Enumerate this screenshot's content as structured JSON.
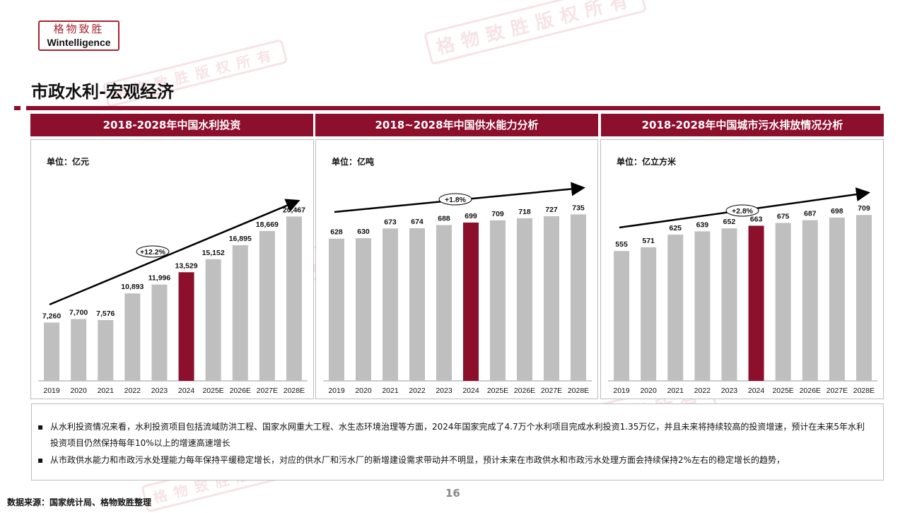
{
  "logo": {
    "cn": "格物致胜",
    "en": "Wintelligence"
  },
  "page_title": "市政水利-宏观经济",
  "panels": [
    {
      "header": "2018-2028年中国水利投资",
      "unit": "单位：亿元"
    },
    {
      "header": "2018~2028年中国供水能力分析",
      "unit": "单位：亿吨"
    },
    {
      "header": "2018-2028年中国城市污水排放情况分析",
      "unit": "单位：亿立方米"
    }
  ],
  "notes": [
    "从水利投资情况来看，水利投资项目包括流域防洪工程、国家水网重大工程、水生态环境治理等方面，2024年国家完成了4.7万个水利项目完成水利投资1.35万亿，并且未来将持续较高的投资增速，预计在未来5年水利投资项目仍然保持每年10%以上的增速高速增长",
    "从市政供水能力和市政污水处理能力每年保持平缓稳定增长，对应的供水厂和污水厂的新增建设需求带动并不明显，预计未来在市政供水和市政污水处理方面会持续保持2%左右的稳定增长的趋势，"
  ],
  "note_bullet": "▪",
  "page_number": "16",
  "source": "数据来源：国家统计局、格物致胜整理",
  "watermark_text": "格物致胜版权所有",
  "colors": {
    "brand": "#8c0f2c",
    "bar": "#bfbfbf",
    "highlight": "#8c0f2c"
  },
  "chart_data": [
    {
      "type": "bar",
      "title": "2018-2028年中国水利投资",
      "ylabel": "单位：亿元",
      "categories": [
        "2019",
        "2020",
        "2021",
        "2022",
        "2023",
        "2024",
        "2025E",
        "2026E",
        "2027E",
        "2028E"
      ],
      "values": [
        7260,
        7700,
        7576,
        10893,
        11996,
        13529,
        15152,
        16895,
        18669,
        20467
      ],
      "value_labels": [
        "7,260",
        "7,700",
        "7,576",
        "10,893",
        "11,996",
        "13,529",
        "15,152",
        "16,895",
        "18,669",
        "20,467"
      ],
      "highlight_index": 5,
      "trend_label": "+12.2%",
      "ylim": [
        0,
        22000
      ]
    },
    {
      "type": "bar",
      "title": "2018~2028年中国供水能力分析",
      "ylabel": "单位：亿吨",
      "categories": [
        "2019",
        "2020",
        "2021",
        "2022",
        "2023",
        "2024",
        "2025E",
        "2026E",
        "2027E",
        "2028E"
      ],
      "values": [
        628,
        630,
        673,
        674,
        688,
        699,
        709,
        718,
        727,
        735
      ],
      "value_labels": [
        "628",
        "630",
        "673",
        "674",
        "688",
        "699",
        "709",
        "718",
        "727",
        "735"
      ],
      "highlight_index": 5,
      "trend_label": "+1.8%",
      "ylim": [
        0,
        780
      ]
    },
    {
      "type": "bar",
      "title": "2018-2028年中国城市污水排放情况分析",
      "ylabel": "单位：亿立方米",
      "categories": [
        "2019",
        "2020",
        "2021",
        "2022",
        "2023",
        "2024",
        "2025E",
        "2026E",
        "2027E",
        "2028E"
      ],
      "values": [
        555,
        571,
        625,
        639,
        652,
        663,
        675,
        687,
        698,
        709
      ],
      "value_labels": [
        "555",
        "571",
        "625",
        "639",
        "652",
        "663",
        "675",
        "687",
        "698",
        "709"
      ],
      "highlight_index": 5,
      "trend_label": "+2.8%",
      "ylim": [
        0,
        755
      ]
    }
  ]
}
